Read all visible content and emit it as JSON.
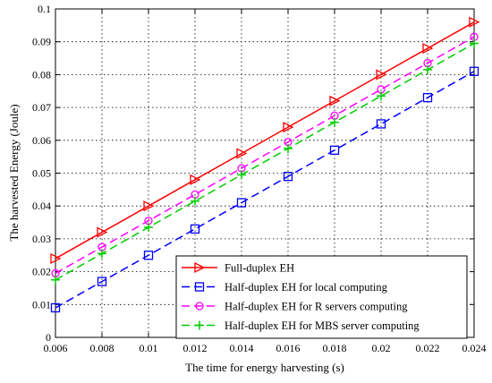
{
  "chart_data": {
    "type": "line",
    "title": "",
    "xlabel": "The time for energy harvesting (s)",
    "ylabel": "The harvested Energy (Joule)",
    "xlim": [
      0.006,
      0.024
    ],
    "ylim": [
      0,
      0.1
    ],
    "xticks": [
      "0.006",
      "0.008",
      "0.01",
      "0.012",
      "0.014",
      "0.016",
      "0.018",
      "0.02",
      "0.022",
      "0.024"
    ],
    "yticks": [
      "0",
      "0.01",
      "0.02",
      "0.03",
      "0.04",
      "0.05",
      "0.06",
      "0.07",
      "0.08",
      "0.09",
      "0.1"
    ],
    "grid": true,
    "legend_position": "bottom-right",
    "x": [
      0.006,
      0.008,
      0.01,
      0.012,
      0.014,
      0.016,
      0.018,
      0.02,
      0.022,
      0.024
    ],
    "series": [
      {
        "name": "Full-duplex EH",
        "color": "#ff0000",
        "line": "solid",
        "marker": "triangle-right",
        "values": [
          0.024,
          0.032,
          0.04,
          0.048,
          0.056,
          0.064,
          0.072,
          0.08,
          0.088,
          0.096
        ]
      },
      {
        "name": "Half-duplex EH for local computing",
        "color": "#0000ff",
        "line": "dashed",
        "marker": "square",
        "values": [
          0.009,
          0.017,
          0.025,
          0.033,
          0.041,
          0.049,
          0.057,
          0.065,
          0.073,
          0.081
        ]
      },
      {
        "name": "Half-duplex EH for R servers computing",
        "color": "#ff00ff",
        "line": "dashed",
        "marker": "circle",
        "values": [
          0.0195,
          0.0275,
          0.0355,
          0.0435,
          0.0515,
          0.0595,
          0.0675,
          0.0755,
          0.0835,
          0.0915
        ]
      },
      {
        "name": "Half-duplex EH for MBS server computing",
        "color": "#00cc00",
        "line": "dashed",
        "marker": "plus",
        "values": [
          0.0175,
          0.0255,
          0.0335,
          0.0415,
          0.0495,
          0.0575,
          0.0655,
          0.0735,
          0.0815,
          0.0895
        ]
      }
    ]
  }
}
